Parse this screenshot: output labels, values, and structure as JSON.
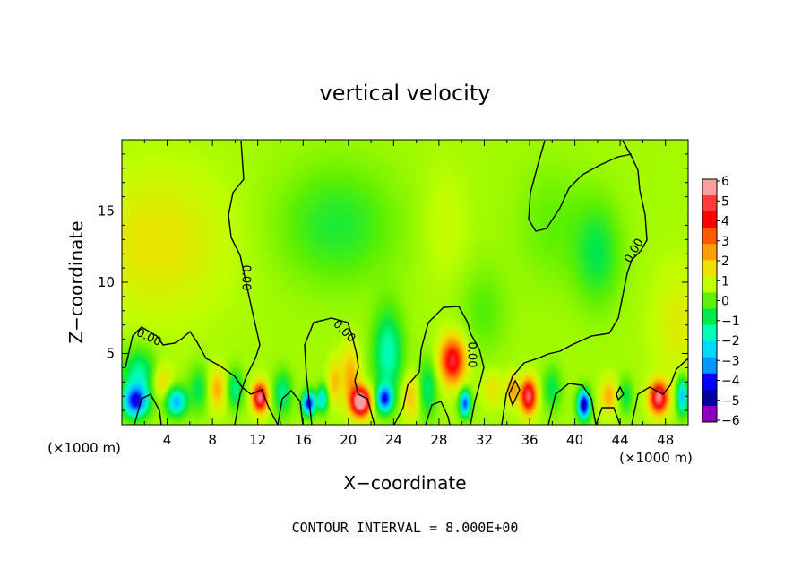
{
  "chart_data": {
    "type": "heatmap",
    "title": "vertical velocity",
    "xlabel": "X−coordinate",
    "ylabel": "Z−coordinate",
    "x_units_left": "(×1000 m)",
    "x_units_right": "(×1000 m)",
    "xlim": [
      0,
      50
    ],
    "ylim": [
      0,
      20
    ],
    "x_ticks": [
      "4",
      "8",
      "12",
      "16",
      "20",
      "24",
      "28",
      "32",
      "36",
      "40",
      "44",
      "48"
    ],
    "y_ticks": [
      "5",
      "10",
      "15"
    ],
    "colorbar": {
      "min": -6,
      "max": 6,
      "tick_labels": [
        "6",
        "5",
        "4",
        "3",
        "2",
        "1",
        "0",
        "−1",
        "−2",
        "−3",
        "−4",
        "−5",
        "−6"
      ],
      "colors": [
        "#f8a0a0",
        "#ff3a3a",
        "#ff0000",
        "#ff5a00",
        "#ffa000",
        "#f0e000",
        "#c0ff00",
        "#5ef000",
        "#00e84a",
        "#00ffb4",
        "#00d8ff",
        "#0096ff",
        "#0000ff",
        "#0000a0",
        "#8c00c0"
      ]
    },
    "contour_labels": [
      "0.00",
      "0.00",
      "0.00",
      "0.00",
      "0.00",
      "0.00"
    ],
    "footer": "CONTOUR INTERVAL = 8.000E+00",
    "background_value": 0.6,
    "features": [
      {
        "x": 3,
        "z": 12.8,
        "w": 1.0,
        "sx": 6,
        "sz": 5
      },
      {
        "x": 49.5,
        "z": 7,
        "w": 0.8,
        "sx": 2.5,
        "sz": 4
      },
      {
        "x": 19,
        "z": 14,
        "w": -1.2,
        "sx": 5,
        "sz": 4
      },
      {
        "x": 38,
        "z": 14,
        "w": -0.6,
        "sx": 3,
        "sz": 4
      },
      {
        "x": 42,
        "z": 12,
        "w": -1.4,
        "sx": 2,
        "sz": 3.5
      },
      {
        "x": 23.5,
        "z": 5,
        "w": -2.4,
        "sx": 1.3,
        "sz": 3
      },
      {
        "x": 28.5,
        "z": 14,
        "w": 0.4,
        "sx": 2,
        "sz": 4
      },
      {
        "x": 32,
        "z": 8,
        "w": -0.7,
        "sx": 2,
        "sz": 3
      },
      {
        "x": 1.2,
        "z": 1.6,
        "w": -4.6,
        "sx": 1.1,
        "sz": 1.1
      },
      {
        "x": 1.5,
        "z": 3.5,
        "w": -2.2,
        "sx": 1.5,
        "sz": 1.8
      },
      {
        "x": 4.8,
        "z": 1.6,
        "w": -3.6,
        "sx": 0.9,
        "sz": 1.0
      },
      {
        "x": 6.8,
        "z": 2.5,
        "w": -1.5,
        "sx": 0.9,
        "sz": 1.6
      },
      {
        "x": 3.5,
        "z": 3,
        "w": 1.4,
        "sx": 0.9,
        "sz": 1.2
      },
      {
        "x": 8.4,
        "z": 2.5,
        "w": 1.8,
        "sx": 0.8,
        "sz": 1.4
      },
      {
        "x": 12.2,
        "z": 1.9,
        "w": 5.2,
        "sx": 0.65,
        "sz": 1.0
      },
      {
        "x": 10,
        "z": 2.5,
        "w": -2.0,
        "sx": 0.7,
        "sz": 1.3
      },
      {
        "x": 14.2,
        "z": 2.2,
        "w": -2.0,
        "sx": 0.8,
        "sz": 1.5
      },
      {
        "x": 16.5,
        "z": 1.5,
        "w": -5.2,
        "sx": 0.55,
        "sz": 0.8
      },
      {
        "x": 17.7,
        "z": 1.8,
        "w": -3.0,
        "sx": 0.5,
        "sz": 0.9
      },
      {
        "x": 18.8,
        "z": 3.0,
        "w": 1.5,
        "sx": 0.6,
        "sz": 1.5
      },
      {
        "x": 21.1,
        "z": 1.6,
        "w": 6.5,
        "sx": 0.85,
        "sz": 1.0
      },
      {
        "x": 20.2,
        "z": 3.5,
        "w": 1.8,
        "sx": 0.8,
        "sz": 2.0
      },
      {
        "x": 23.2,
        "z": 1.8,
        "w": -4.4,
        "sx": 0.7,
        "sz": 0.9
      },
      {
        "x": 25.5,
        "z": 2.0,
        "w": 1.6,
        "sx": 0.8,
        "sz": 1.5
      },
      {
        "x": 27,
        "z": 2.5,
        "w": -1.8,
        "sx": 0.8,
        "sz": 2.0
      },
      {
        "x": 29.2,
        "z": 4.5,
        "w": 4.3,
        "sx": 1.1,
        "sz": 1.6
      },
      {
        "x": 30.3,
        "z": 1.5,
        "w": -4.6,
        "sx": 0.5,
        "sz": 0.9
      },
      {
        "x": 32.8,
        "z": 2.5,
        "w": 1.0,
        "sx": 1.0,
        "sz": 1.2
      },
      {
        "x": 35.9,
        "z": 2.0,
        "w": 5.0,
        "sx": 0.7,
        "sz": 1.2
      },
      {
        "x": 34.5,
        "z": 2.5,
        "w": 2.0,
        "sx": 0.5,
        "sz": 1.0
      },
      {
        "x": 38,
        "z": 2.5,
        "w": -1.5,
        "sx": 0.8,
        "sz": 1.5
      },
      {
        "x": 40.8,
        "z": 1.4,
        "w": -5.8,
        "sx": 0.55,
        "sz": 1.0
      },
      {
        "x": 43,
        "z": 2.0,
        "w": 1.8,
        "sx": 0.7,
        "sz": 1.2
      },
      {
        "x": 44.5,
        "z": 2.0,
        "w": -1.5,
        "sx": 0.6,
        "sz": 1.2
      },
      {
        "x": 47.4,
        "z": 1.9,
        "w": 5.2,
        "sx": 0.8,
        "sz": 1.1
      },
      {
        "x": 49.5,
        "z": 2.0,
        "w": -3.6,
        "sx": 0.5,
        "sz": 1.3
      }
    ]
  }
}
